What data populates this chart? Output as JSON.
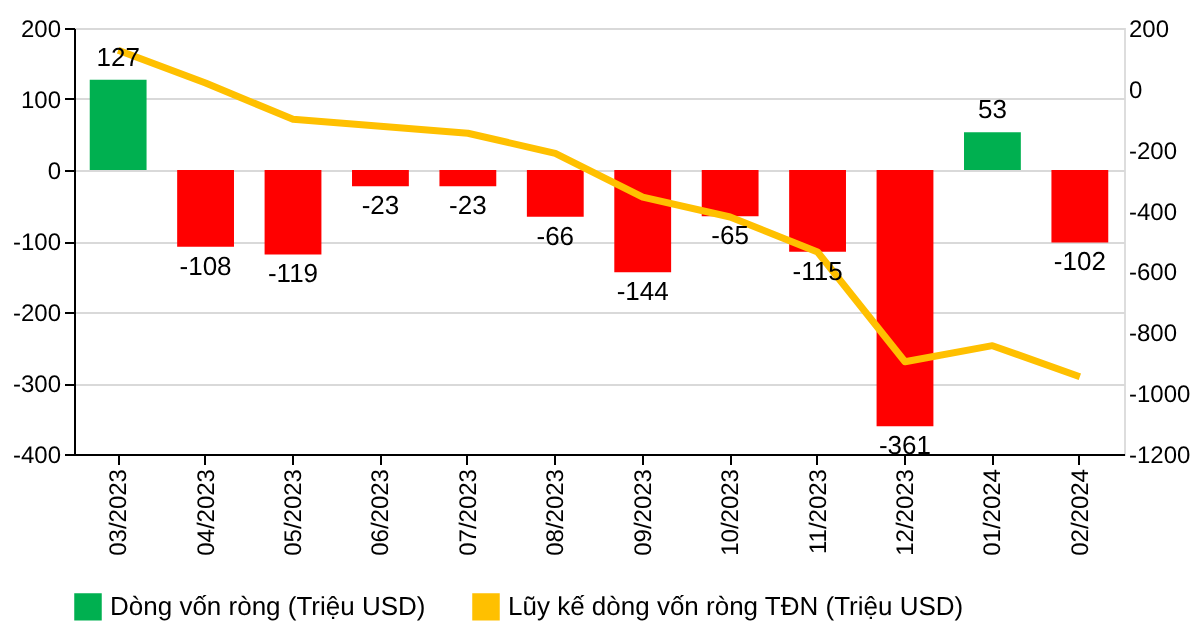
{
  "chart_data": {
    "type": "bar",
    "categories": [
      "03/2023",
      "04/2023",
      "05/2023",
      "06/2023",
      "07/2023",
      "08/2023",
      "09/2023",
      "10/2023",
      "11/2023",
      "12/2023",
      "01/2024",
      "02/2024"
    ],
    "series": [
      {
        "name": "Dòng vốn ròng (Triệu USD)",
        "colors": [
          "#00b050",
          "#ff0000",
          "#ff0000",
          "#ff0000",
          "#ff0000",
          "#ff0000",
          "#ff0000",
          "#ff0000",
          "#ff0000",
          "#ff0000",
          "#00b050",
          "#ff0000"
        ],
        "values": [
          127,
          -108,
          -119,
          -23,
          -23,
          -66,
          -144,
          -65,
          -115,
          -361,
          53,
          -102
        ],
        "value_labels": [
          "127",
          "-108",
          "-119",
          "-23",
          "-23",
          "-66",
          "-144",
          "-65",
          "-115",
          "-361",
          "53",
          "-102"
        ]
      },
      {
        "name": "Lũy kế dòng vốn ròng TĐN (Triệu USD)",
        "type": "line",
        "axis": "y2",
        "color": "#ffc000",
        "values": [
          127,
          19,
          -100,
          -123,
          -146,
          -212,
          -356,
          -421,
          -536,
          -897,
          -844,
          -946
        ]
      }
    ],
    "ylim": [
      -400,
      200
    ],
    "yticks": [
      -400,
      -300,
      -200,
      -100,
      0,
      100,
      200
    ],
    "y2lim": [
      -1200,
      200
    ],
    "y2ticks": [
      -1200,
      -1000,
      -800,
      -600,
      -400,
      -200,
      0,
      200
    ],
    "grid": "y",
    "legend": "bottom",
    "marker": "none",
    "line_style": "solid"
  }
}
